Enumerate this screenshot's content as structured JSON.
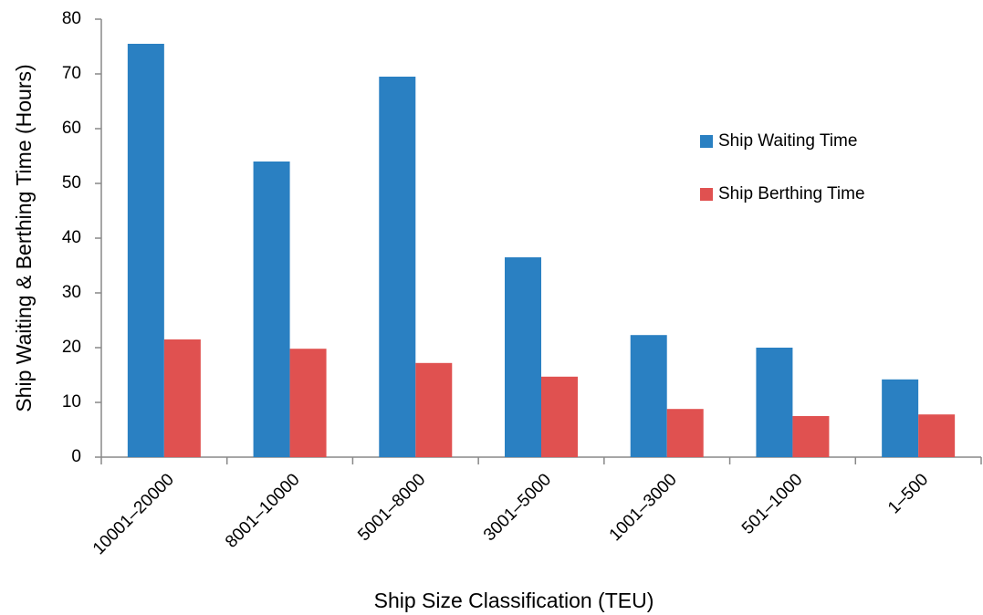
{
  "chart_data": {
    "type": "bar",
    "xlabel": "Ship Size Classification (TEU)",
    "ylabel": "Ship Waiting & Berthing Time (Hours)",
    "categories": [
      "10001–20000",
      "8001–10000",
      "5001–8000",
      "3001–5000",
      "1001–3000",
      "501–1000",
      "1–500"
    ],
    "series": [
      {
        "name": "Ship Waiting Time",
        "color": "#2a80c2",
        "values": [
          75.5,
          54,
          69.5,
          36.5,
          22.3,
          20,
          14.2
        ]
      },
      {
        "name": "Ship Berthing Time",
        "color": "#e05150",
        "values": [
          21.5,
          19.8,
          17.2,
          14.7,
          8.8,
          7.5,
          7.8
        ]
      }
    ],
    "ylim": [
      0,
      80
    ],
    "yticks": [
      0,
      10,
      20,
      30,
      40,
      50,
      60,
      70,
      80
    ],
    "legend": "right",
    "grid": false
  }
}
